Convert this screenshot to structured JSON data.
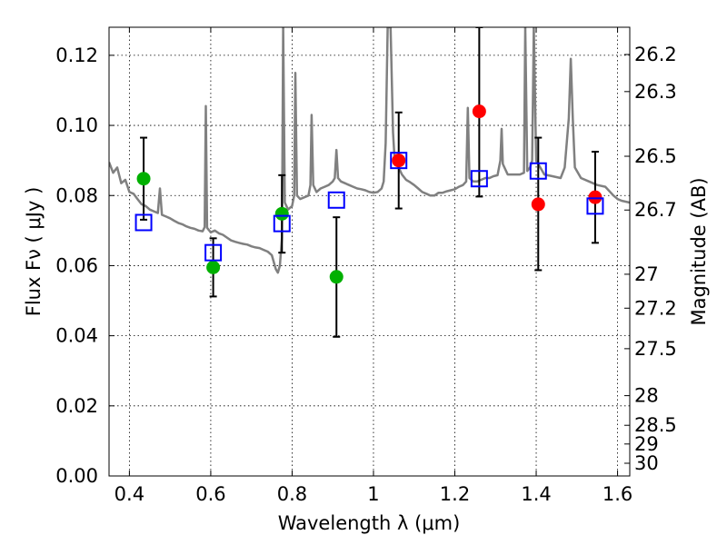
{
  "chart_data": {
    "type": "scatter",
    "xlabel": "Wavelength  λ (μm)",
    "ylabel": "Flux  Fν  ( μJy )",
    "ylabel_right": "Magnitude (AB)",
    "xlim": [
      0.35,
      1.63
    ],
    "ylim": [
      0.0,
      0.128
    ],
    "x_ticks": [
      0.4,
      0.6,
      0.8,
      1.0,
      1.2,
      1.4,
      1.6
    ],
    "x_tick_labels": [
      "0.4",
      "0.6",
      "0.8",
      "1",
      "1.2",
      "1.4",
      "1.6"
    ],
    "y_ticks": [
      0.0,
      0.02,
      0.04,
      0.06,
      0.08,
      0.1,
      0.12
    ],
    "y_tick_labels": [
      "0.00",
      "0.02",
      "0.04",
      "0.06",
      "0.08",
      "0.10",
      "0.12"
    ],
    "magnitude_ticks": [
      "26.2",
      "26.3",
      "26.5",
      "26.7",
      "27",
      "27.2",
      "27.5",
      "28",
      "28.5",
      "29",
      "30"
    ],
    "grid": true,
    "series": [
      {
        "marker": "circle",
        "color": "#00b000",
        "points": [
          {
            "x": 0.435,
            "y": 0.0848,
            "yerr_low": 0.0731,
            "yerr_high": 0.0965
          },
          {
            "x": 0.606,
            "y": 0.0595,
            "yerr_low": 0.0512,
            "yerr_high": 0.0678
          },
          {
            "x": 0.775,
            "y": 0.0748,
            "yerr_low": 0.0637,
            "yerr_high": 0.0858
          },
          {
            "x": 0.909,
            "y": 0.0568,
            "yerr_low": 0.0397,
            "yerr_high": 0.0738
          }
        ]
      },
      {
        "marker": "circle",
        "color": "#ff0000",
        "points": [
          {
            "x": 1.062,
            "y": 0.09,
            "yerr_low": 0.0763,
            "yerr_high": 0.1037
          },
          {
            "x": 1.26,
            "y": 0.104,
            "yerr_low": 0.0797,
            "yerr_high": 0.128
          },
          {
            "x": 1.405,
            "y": 0.0775,
            "yerr_low": 0.0587,
            "yerr_high": 0.0965
          },
          {
            "x": 1.545,
            "y": 0.0795,
            "yerr_low": 0.0665,
            "yerr_high": 0.0925
          }
        ]
      },
      {
        "marker": "open-square",
        "color": "#0000ff",
        "points": [
          {
            "x": 0.435,
            "y": 0.0723
          },
          {
            "x": 0.606,
            "y": 0.0637
          },
          {
            "x": 0.775,
            "y": 0.072
          },
          {
            "x": 0.909,
            "y": 0.0787
          },
          {
            "x": 1.062,
            "y": 0.09
          },
          {
            "x": 1.26,
            "y": 0.0848
          },
          {
            "x": 1.405,
            "y": 0.087
          },
          {
            "x": 1.545,
            "y": 0.077
          }
        ]
      }
    ],
    "spectrum": {
      "color": "#808080",
      "points": [
        [
          0.35,
          0.0895
        ],
        [
          0.36,
          0.0865
        ],
        [
          0.37,
          0.088
        ],
        [
          0.38,
          0.0835
        ],
        [
          0.39,
          0.0845
        ],
        [
          0.4,
          0.081
        ],
        [
          0.41,
          0.0805
        ],
        [
          0.42,
          0.079
        ],
        [
          0.43,
          0.0775
        ],
        [
          0.44,
          0.077
        ],
        [
          0.45,
          0.076
        ],
        [
          0.46,
          0.0755
        ],
        [
          0.47,
          0.075
        ],
        [
          0.475,
          0.082
        ],
        [
          0.48,
          0.0745
        ],
        [
          0.49,
          0.074
        ],
        [
          0.5,
          0.0735
        ],
        [
          0.51,
          0.0728
        ],
        [
          0.52,
          0.0722
        ],
        [
          0.53,
          0.0718
        ],
        [
          0.54,
          0.0712
        ],
        [
          0.55,
          0.0708
        ],
        [
          0.56,
          0.0705
        ],
        [
          0.57,
          0.07
        ],
        [
          0.58,
          0.0698
        ],
        [
          0.585,
          0.071
        ],
        [
          0.588,
          0.1055
        ],
        [
          0.591,
          0.0708
        ],
        [
          0.6,
          0.0695
        ],
        [
          0.61,
          0.07
        ],
        [
          0.62,
          0.0692
        ],
        [
          0.63,
          0.0688
        ],
        [
          0.64,
          0.068
        ],
        [
          0.65,
          0.0672
        ],
        [
          0.66,
          0.0668
        ],
        [
          0.67,
          0.0665
        ],
        [
          0.68,
          0.0662
        ],
        [
          0.69,
          0.066
        ],
        [
          0.7,
          0.0655
        ],
        [
          0.71,
          0.0652
        ],
        [
          0.72,
          0.065
        ],
        [
          0.73,
          0.0645
        ],
        [
          0.74,
          0.064
        ],
        [
          0.75,
          0.063
        ],
        [
          0.76,
          0.059
        ],
        [
          0.765,
          0.058
        ],
        [
          0.77,
          0.06
        ],
        [
          0.775,
          0.068
        ],
        [
          0.778,
          0.128
        ],
        [
          0.782,
          0.078
        ],
        [
          0.79,
          0.076
        ],
        [
          0.8,
          0.077
        ],
        [
          0.805,
          0.08
        ],
        [
          0.808,
          0.115
        ],
        [
          0.812,
          0.08
        ],
        [
          0.82,
          0.079
        ],
        [
          0.83,
          0.0795
        ],
        [
          0.84,
          0.08
        ],
        [
          0.845,
          0.083
        ],
        [
          0.848,
          0.103
        ],
        [
          0.852,
          0.083
        ],
        [
          0.86,
          0.081
        ],
        [
          0.87,
          0.082
        ],
        [
          0.88,
          0.0825
        ],
        [
          0.89,
          0.083
        ],
        [
          0.9,
          0.084
        ],
        [
          0.905,
          0.085
        ],
        [
          0.909,
          0.093
        ],
        [
          0.913,
          0.085
        ],
        [
          0.92,
          0.084
        ],
        [
          0.93,
          0.0835
        ],
        [
          0.94,
          0.083
        ],
        [
          0.95,
          0.0825
        ],
        [
          0.96,
          0.082
        ],
        [
          0.97,
          0.0818
        ],
        [
          0.98,
          0.0815
        ],
        [
          0.99,
          0.081
        ],
        [
          1.0,
          0.0808
        ],
        [
          1.01,
          0.081
        ],
        [
          1.02,
          0.082
        ],
        [
          1.025,
          0.084
        ],
        [
          1.03,
          0.095
        ],
        [
          1.035,
          0.128
        ],
        [
          1.042,
          0.128
        ],
        [
          1.048,
          0.098
        ],
        [
          1.052,
          0.09
        ],
        [
          1.055,
          0.089
        ],
        [
          1.062,
          0.088
        ],
        [
          1.07,
          0.086
        ],
        [
          1.08,
          0.0845
        ],
        [
          1.09,
          0.0838
        ],
        [
          1.1,
          0.083
        ],
        [
          1.11,
          0.082
        ],
        [
          1.12,
          0.081
        ],
        [
          1.13,
          0.0805
        ],
        [
          1.14,
          0.08
        ],
        [
          1.15,
          0.08
        ],
        [
          1.16,
          0.0808
        ],
        [
          1.17,
          0.0808
        ],
        [
          1.18,
          0.0812
        ],
        [
          1.19,
          0.0815
        ],
        [
          1.2,
          0.0818
        ],
        [
          1.21,
          0.0825
        ],
        [
          1.22,
          0.083
        ],
        [
          1.228,
          0.084
        ],
        [
          1.232,
          0.105
        ],
        [
          1.236,
          0.085
        ],
        [
          1.245,
          0.084
        ],
        [
          1.255,
          0.084
        ],
        [
          1.265,
          0.0845
        ],
        [
          1.275,
          0.085
        ],
        [
          1.285,
          0.085
        ],
        [
          1.295,
          0.0855
        ],
        [
          1.305,
          0.0858
        ],
        [
          1.312,
          0.09
        ],
        [
          1.315,
          0.099
        ],
        [
          1.318,
          0.089
        ],
        [
          1.33,
          0.086
        ],
        [
          1.345,
          0.086
        ],
        [
          1.36,
          0.086
        ],
        [
          1.37,
          0.0865
        ],
        [
          1.373,
          0.128
        ],
        [
          1.378,
          0.087
        ],
        [
          1.385,
          0.088
        ],
        [
          1.39,
          0.09
        ],
        [
          1.394,
          0.128
        ],
        [
          1.4,
          0.09
        ],
        [
          1.41,
          0.088
        ],
        [
          1.42,
          0.086
        ],
        [
          1.44,
          0.0855
        ],
        [
          1.46,
          0.085
        ],
        [
          1.47,
          0.088
        ],
        [
          1.48,
          0.102
        ],
        [
          1.485,
          0.119
        ],
        [
          1.49,
          0.102
        ],
        [
          1.495,
          0.088
        ],
        [
          1.51,
          0.085
        ],
        [
          1.53,
          0.084
        ],
        [
          1.55,
          0.083
        ],
        [
          1.57,
          0.0825
        ],
        [
          1.59,
          0.08
        ],
        [
          1.6,
          0.079
        ],
        [
          1.61,
          0.0785
        ],
        [
          1.63,
          0.078
        ]
      ]
    }
  }
}
